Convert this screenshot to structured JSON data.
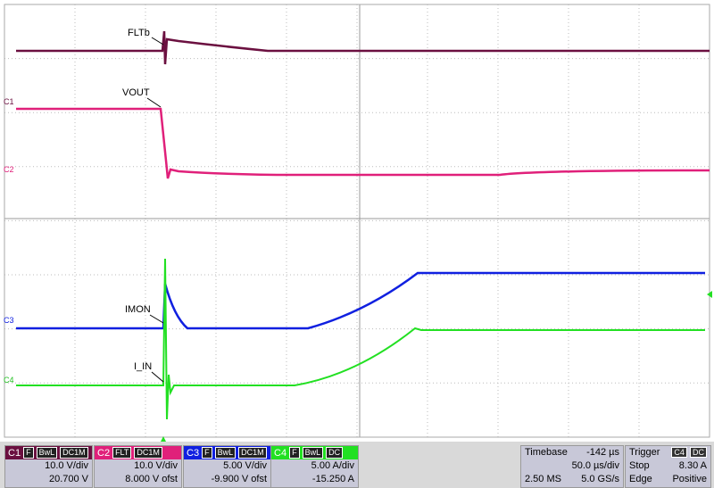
{
  "traces": [
    {
      "label": "FLTb"
    },
    {
      "label": "VOUT"
    },
    {
      "label": "IMON"
    },
    {
      "label": "I_IN"
    }
  ],
  "markers": [
    "C1",
    "C2",
    "C3",
    "C4"
  ],
  "channels": [
    {
      "name": "C1",
      "tags": [
        "F",
        "BwL",
        "DC1M"
      ],
      "scale": "10.0 V/div",
      "offset": "20.700 V"
    },
    {
      "name": "C2",
      "tags": [
        "FLT",
        "DC1M"
      ],
      "scale": "10.0 V/div",
      "offset": "8.000 V ofst"
    },
    {
      "name": "C3",
      "tags": [
        "F",
        "BwL",
        "DC1M"
      ],
      "scale": "5.00 V/div",
      "offset": "-9.900 V ofst"
    },
    {
      "name": "C4",
      "tags": [
        "F",
        "BwL",
        "DC"
      ],
      "scale": "5.00 A/div",
      "offset": "-15.250 A"
    }
  ],
  "timebase": {
    "title": "Timebase",
    "delay": "-142 µs",
    "scale": "50.0 µs/div",
    "samples": "2.50 MS",
    "rate": "5.0 GS/s"
  },
  "trigger": {
    "title": "Trigger",
    "tags": [
      "C4",
      "DC"
    ],
    "mode": "Stop",
    "level": "8.30 A",
    "type": "Edge",
    "slope": "Positive"
  }
}
